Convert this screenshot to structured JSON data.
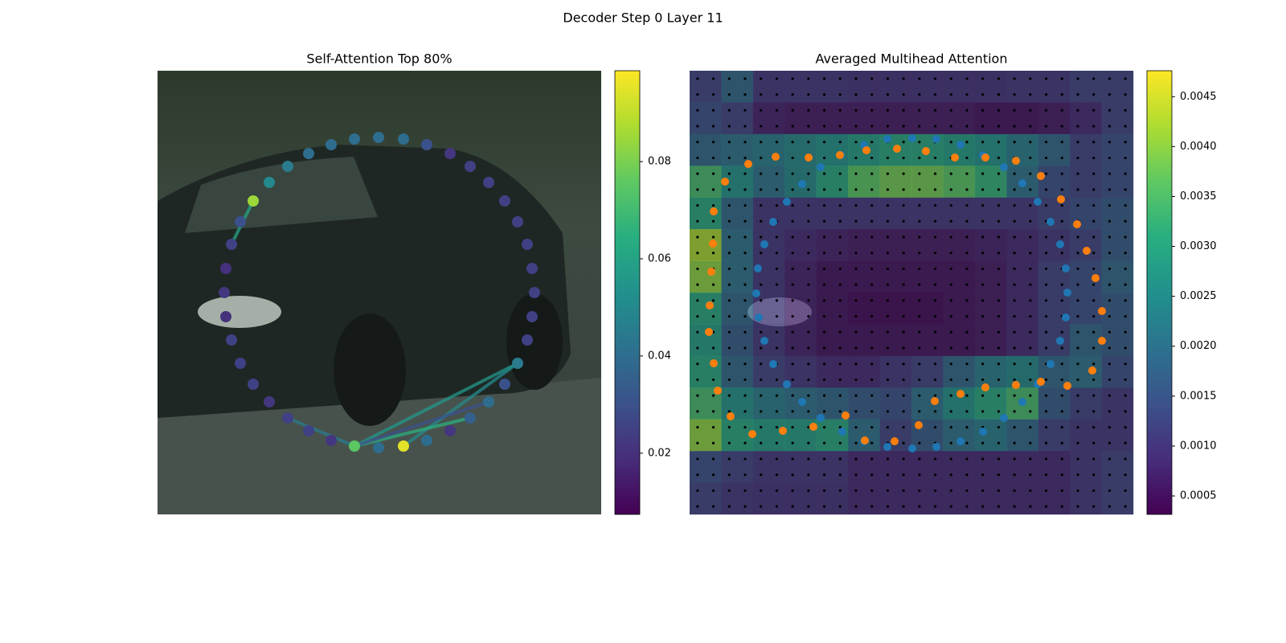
{
  "title": "Decoder Step 0 Layer 11",
  "chart_data": [
    {
      "type": "scatter",
      "title": "Self-Attention Top 80%",
      "x": [
        119,
        103,
        92,
        85,
        83,
        85,
        92,
        103,
        119,
        139,
        162,
        188,
        216,
        245,
        275,
        306,
        335,
        364,
        389,
        412,
        432,
        448,
        460,
        466,
        469,
        466,
        460,
        448,
        432,
        412,
        389,
        364,
        335,
        306,
        275,
        245,
        216,
        188,
        162,
        139
      ],
      "y": [
        162,
        188,
        216,
        246,
        276,
        306,
        335,
        364,
        390,
        412,
        432,
        448,
        460,
        467,
        469,
        467,
        460,
        448,
        432,
        412,
        390,
        364,
        335,
        306,
        276,
        246,
        216,
        188,
        162,
        139,
        119,
        103,
        92,
        85,
        83,
        85,
        92,
        103,
        119,
        139
      ],
      "values": [
        0.085,
        0.03,
        0.025,
        0.02,
        0.022,
        0.02,
        0.025,
        0.025,
        0.025,
        0.022,
        0.025,
        0.025,
        0.022,
        0.075,
        0.04,
        0.095,
        0.04,
        0.022,
        0.035,
        0.04,
        0.03,
        0.045,
        0.025,
        0.025,
        0.025,
        0.025,
        0.025,
        0.025,
        0.025,
        0.025,
        0.025,
        0.022,
        0.03,
        0.04,
        0.04,
        0.04,
        0.04,
        0.04,
        0.045,
        0.05
      ],
      "links": [
        {
          "from": 13,
          "to": 21,
          "value": 0.055
        },
        {
          "from": 15,
          "to": 21,
          "value": 0.05
        },
        {
          "from": 13,
          "to": 18,
          "value": 0.065
        },
        {
          "from": 13,
          "to": 10,
          "value": 0.045
        },
        {
          "from": 0,
          "to": 2,
          "value": 0.06
        },
        {
          "from": 13,
          "to": 19,
          "value": 0.03
        }
      ],
      "clim": [
        0.0074,
        0.0987
      ],
      "cticks": [
        0.02,
        0.04,
        0.06,
        0.08
      ]
    },
    {
      "type": "heatmap",
      "title": "Averaged Multihead Attention",
      "values": [
        [
          0.0012,
          0.0018,
          0.001,
          0.001,
          0.001,
          0.0009,
          0.0009,
          0.0009,
          0.0009,
          0.0009,
          0.001,
          0.001,
          0.0012,
          0.0012
        ],
        [
          0.0014,
          0.0012,
          0.0007,
          0.0006,
          0.0006,
          0.0006,
          0.0006,
          0.0006,
          0.0006,
          0.0005,
          0.0005,
          0.0006,
          0.0008,
          0.0012
        ],
        [
          0.0018,
          0.002,
          0.0022,
          0.0024,
          0.0026,
          0.0028,
          0.003,
          0.003,
          0.0028,
          0.0026,
          0.0022,
          0.0018,
          0.0012,
          0.0014
        ],
        [
          0.0034,
          0.0026,
          0.002,
          0.0024,
          0.003,
          0.0036,
          0.0038,
          0.0038,
          0.0036,
          0.0032,
          0.002,
          0.0014,
          0.0012,
          0.0014
        ],
        [
          0.003,
          0.0018,
          0.001,
          0.001,
          0.001,
          0.001,
          0.001,
          0.001,
          0.001,
          0.001,
          0.001,
          0.0012,
          0.0014,
          0.0016
        ],
        [
          0.0042,
          0.002,
          0.001,
          0.0008,
          0.0007,
          0.0006,
          0.0006,
          0.0006,
          0.0006,
          0.0007,
          0.0008,
          0.001,
          0.0012,
          0.0016
        ],
        [
          0.004,
          0.002,
          0.001,
          0.0007,
          0.0005,
          0.0005,
          0.0005,
          0.0005,
          0.0005,
          0.0006,
          0.0008,
          0.0012,
          0.0014,
          0.0018
        ],
        [
          0.003,
          0.0018,
          0.001,
          0.0007,
          0.0005,
          0.0004,
          0.0004,
          0.0004,
          0.0005,
          0.0006,
          0.0008,
          0.0012,
          0.0014,
          0.0016
        ],
        [
          0.0028,
          0.0016,
          0.001,
          0.0007,
          0.0005,
          0.0005,
          0.0005,
          0.0005,
          0.0005,
          0.0006,
          0.0008,
          0.0012,
          0.0018,
          0.0016
        ],
        [
          0.003,
          0.0018,
          0.0012,
          0.001,
          0.0008,
          0.0008,
          0.001,
          0.0012,
          0.0018,
          0.0022,
          0.0024,
          0.0018,
          0.002,
          0.0014
        ],
        [
          0.0034,
          0.0026,
          0.0022,
          0.002,
          0.0018,
          0.0016,
          0.0014,
          0.002,
          0.0026,
          0.003,
          0.0034,
          0.0016,
          0.0012,
          0.001
        ],
        [
          0.004,
          0.003,
          0.0028,
          0.0028,
          0.003,
          0.002,
          0.0012,
          0.0016,
          0.002,
          0.0022,
          0.0018,
          0.0012,
          0.001,
          0.001
        ],
        [
          0.0014,
          0.0012,
          0.001,
          0.001,
          0.001,
          0.0008,
          0.0008,
          0.0008,
          0.0008,
          0.0008,
          0.0008,
          0.0008,
          0.001,
          0.0012
        ],
        [
          0.0012,
          0.001,
          0.0009,
          0.0009,
          0.0009,
          0.0008,
          0.0008,
          0.0008,
          0.0008,
          0.0008,
          0.0008,
          0.0008,
          0.001,
          0.0012
        ]
      ],
      "points": [
        {
          "color": "#1f77b4",
          "x": [
            217,
            246,
            277,
            307,
            337,
            365,
            391,
            414,
            433,
            449,
            461,
            468,
            470,
            468,
            461,
            449,
            433,
            414,
            391,
            365,
            337,
            307,
            277,
            246,
            217,
            190,
            163,
            140,
            121,
            104,
            93,
            86,
            83,
            85,
            93,
            104,
            121,
            140,
            163,
            188
          ],
          "y": [
            92,
            85,
            84,
            85,
            92,
            105,
            120,
            140,
            163,
            188,
            216,
            246,
            276,
            307,
            336,
            365,
            390,
            412,
            432,
            449,
            461,
            468,
            470,
            468,
            461,
            449,
            432,
            412,
            390,
            365,
            336,
            307,
            277,
            246,
            216,
            188,
            163,
            141,
            120,
            105
          ]
        },
        {
          "color": "#ff7f0e",
          "x": [
            73,
            107,
            148,
            187,
            220,
            258,
            294,
            330,
            368,
            406,
            437,
            462,
            482,
            494,
            505,
            513,
            513,
            501,
            470,
            437,
            406,
            368,
            337,
            305,
            285,
            255,
            218,
            194,
            154,
            116,
            78,
            51,
            35,
            30,
            24,
            25,
            27,
            29,
            30,
            44
          ],
          "y": [
            116,
            107,
            108,
            105,
            99,
            97,
            100,
            108,
            108,
            112,
            131,
            160,
            191,
            224,
            258,
            299,
            336,
            373,
            392,
            387,
            391,
            394,
            402,
            411,
            441,
            461,
            460,
            429,
            443,
            448,
            452,
            430,
            398,
            364,
            325,
            292,
            250,
            215,
            175,
            138
          ]
        }
      ],
      "clim": [
        0.000315,
        0.00476
      ],
      "cticks": [
        {
          "value": 0.0005,
          "label": "0.0005"
        },
        {
          "value": 0.001,
          "label": "0.0010"
        },
        {
          "value": 0.0015,
          "label": "0.0015"
        },
        {
          "value": 0.002,
          "label": "0.0020"
        },
        {
          "value": 0.0025,
          "label": "0.0025"
        },
        {
          "value": 0.003,
          "label": "0.0030"
        },
        {
          "value": 0.0035,
          "label": "0.0035"
        },
        {
          "value": 0.004,
          "label": "0.0040"
        },
        {
          "value": 0.0045,
          "label": "0.0045"
        }
      ]
    }
  ]
}
